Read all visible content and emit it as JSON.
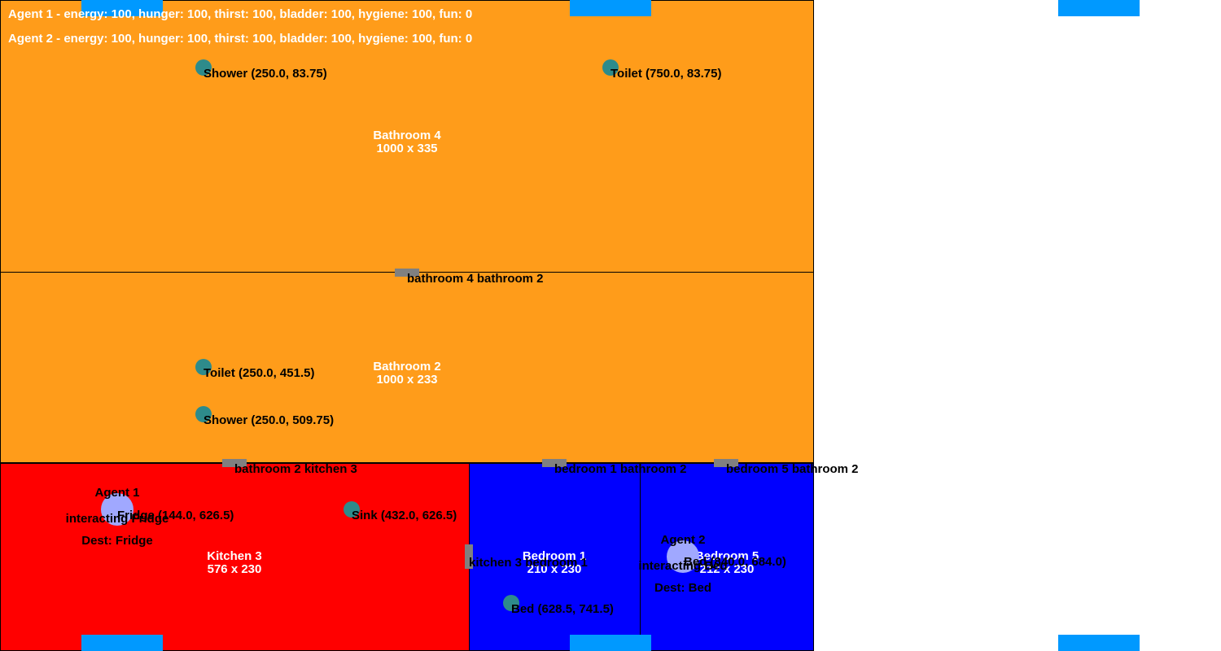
{
  "colors": {
    "bathroom": "#ff9c1a",
    "kitchen": "#ff0000",
    "bedroom": "#0000ff",
    "object": "#2e8b8b",
    "door": "#808080",
    "window": "#0099ff",
    "agent": "#a0a8ff"
  },
  "status": {
    "agent1": "Agent 1 - energy: 100, hunger: 100, thirst: 100, bladder: 100, hygiene: 100, fun: 0",
    "agent2": "Agent 2 - energy: 100, hunger: 100, thirst: 100, bladder: 100, hygiene: 100, fun: 0"
  },
  "rooms": {
    "bathroom4": {
      "name": "Bathroom 4",
      "size": "1000 x 335"
    },
    "bathroom2": {
      "name": "Bathroom 2",
      "size": "1000 x 233"
    },
    "kitchen3": {
      "name": "Kitchen 3",
      "size": "576 x 230"
    },
    "bedroom1": {
      "name": "Bedroom 1",
      "size": "210 x 230"
    },
    "bedroom5": {
      "name": "Bedroom 5",
      "size": "212 x 230"
    }
  },
  "objects": {
    "shower_b4": "Shower (250.0, 83.75)",
    "toilet_b4": "Toilet (750.0, 83.75)",
    "toilet_b2": "Toilet (250.0, 451.5)",
    "shower_b2": "Shower (250.0, 509.75)",
    "fridge": "Fridge (144.0, 626.5)",
    "sink": "Sink (432.0, 626.5)",
    "bed1": "Bed (628.5, 741.5)",
    "bed5": "Bed (840.0, 684.0)"
  },
  "doors": {
    "b4_b2": "bathroom 4 bathroom 2",
    "b2_k3": "bathroom 2 kitchen 3",
    "bd1_b2": "bedroom 1 bathroom 2",
    "bd5_b2": "bedroom 5 bathroom 2",
    "k3_bd1": "kitchen 3 bedroom 1"
  },
  "agents": {
    "agent1": {
      "name": "Agent 1",
      "action": "interacting Fridge",
      "dest": "Dest: Fridge"
    },
    "agent2": {
      "name": "Agent 2",
      "action": "interacting Bed",
      "dest": "Dest: Bed"
    }
  }
}
